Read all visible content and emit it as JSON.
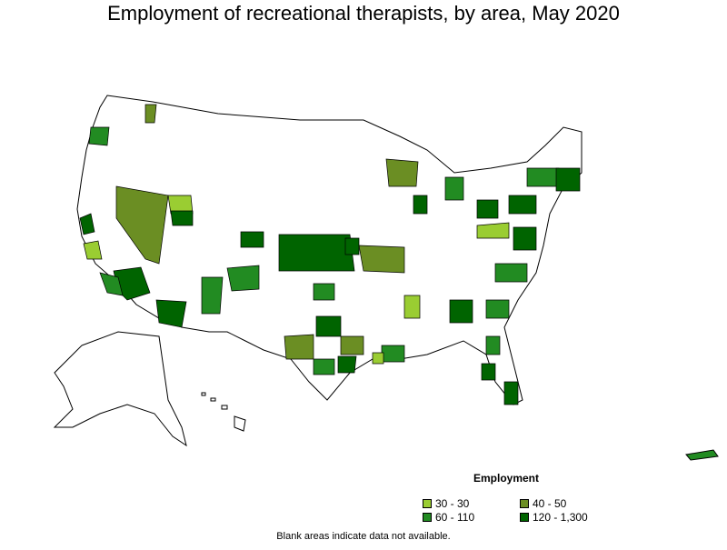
{
  "title": "Employment of recreational therapists, by area, May 2020",
  "note": "Blank areas indicate data not available.",
  "legend": {
    "title": "Employment",
    "items": [
      {
        "label": "30 - 30",
        "color": "#9acd32"
      },
      {
        "label": "40 - 50",
        "color": "#6b8e23"
      },
      {
        "label": "60 - 110",
        "color": "#228b22"
      },
      {
        "label": "120 - 1,300",
        "color": "#006400"
      }
    ]
  }
}
